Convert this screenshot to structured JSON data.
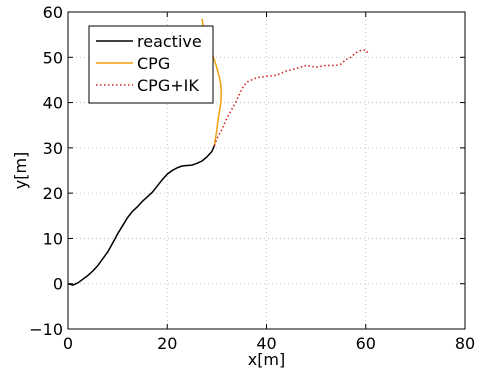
{
  "chart_data": {
    "type": "line",
    "title": "",
    "xlabel": "x[m]",
    "ylabel": "y[m]",
    "xlim": [
      0,
      80
    ],
    "ylim": [
      -10,
      60
    ],
    "xticks": [
      0,
      20,
      40,
      60,
      80
    ],
    "yticks": [
      -10,
      0,
      10,
      20,
      30,
      40,
      50,
      60
    ],
    "xtick_labels": [
      "0",
      "20",
      "40",
      "60",
      "80"
    ],
    "ytick_labels": [
      "−10",
      "0",
      "10",
      "20",
      "30",
      "40",
      "50",
      "60"
    ],
    "grid": true,
    "legend_position": "top-left",
    "series": [
      {
        "name": "reactive",
        "color": "#000000",
        "style": "solid",
        "x": [
          0,
          1,
          2,
          3,
          4,
          5,
          6,
          7,
          8,
          9,
          10,
          11,
          12,
          13,
          14,
          15,
          16,
          17,
          18,
          19,
          20,
          21,
          22,
          23,
          24,
          25,
          26,
          27,
          28,
          29,
          29.5
        ],
        "y": [
          0,
          -0.3,
          0.2,
          1.0,
          1.8,
          2.8,
          4.0,
          5.5,
          7.0,
          9.0,
          11.0,
          12.8,
          14.6,
          16.0,
          17.0,
          18.2,
          19.2,
          20.2,
          21.6,
          23.0,
          24.2,
          25.0,
          25.6,
          26.0,
          26.1,
          26.2,
          26.6,
          27.1,
          28.0,
          29.2,
          30.5
        ]
      },
      {
        "name": "CPG",
        "color": "#f0a010",
        "style": "solid",
        "x": [
          29.5,
          29.7,
          30.0,
          30.2,
          30.5,
          30.8,
          30.9,
          30.8,
          30.4,
          29.9,
          29.3,
          28.6,
          27.9,
          27.4,
          27.0
        ],
        "y": [
          30.5,
          32,
          34,
          36,
          38,
          40,
          42,
          44,
          46,
          48,
          50,
          52,
          54,
          56,
          58.5
        ]
      },
      {
        "name": "CPG+IK",
        "color": "#d62728",
        "style": "dotted",
        "x": [
          29.5,
          30.0,
          31.0,
          32.0,
          33.0,
          34.0,
          35.0,
          36.0,
          37.0,
          38.0,
          40.0,
          42.0,
          44.0,
          46.0,
          48.0,
          50.0,
          52.0,
          54.0,
          55.0,
          56.0,
          57.0,
          58.0,
          59.0,
          60.0,
          60.5
        ],
        "y": [
          30.5,
          32.0,
          34.0,
          36.5,
          38.5,
          40.5,
          43.0,
          44.5,
          45.0,
          45.5,
          45.8,
          46.0,
          47.0,
          47.5,
          48.2,
          47.8,
          48.2,
          48.2,
          48.5,
          49.5,
          50.0,
          51.0,
          51.5,
          51.6,
          50.8
        ]
      }
    ]
  }
}
